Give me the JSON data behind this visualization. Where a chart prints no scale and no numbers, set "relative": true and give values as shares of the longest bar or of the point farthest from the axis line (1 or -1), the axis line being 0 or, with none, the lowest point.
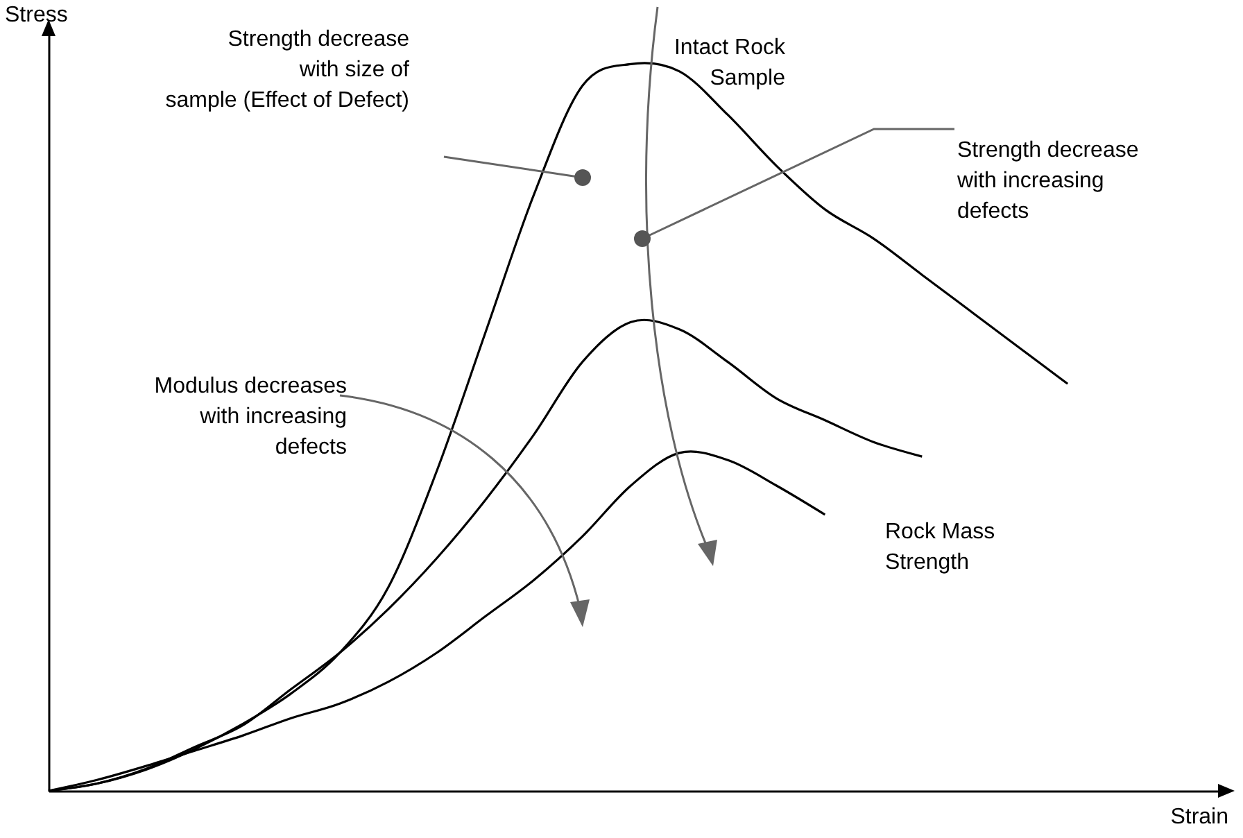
{
  "chart_data": {
    "type": "line",
    "relative": true,
    "xlabel": "Strain",
    "ylabel": "Stress",
    "categories": [
      null,
      null,
      null,
      null,
      null,
      null,
      null,
      null,
      null,
      null,
      null,
      null,
      null,
      null,
      null,
      null,
      null,
      null,
      null,
      null,
      null,
      null
    ],
    "series": [
      {
        "name": "Intact Rock\nSample",
        "color": "#000000",
        "values": [
          0,
          0.01,
          0.029,
          0.057,
          0.092,
          0.134,
          0.19,
          0.28,
          0.44,
          0.63,
          0.82,
          0.97,
          1,
          0.99,
          0.93,
          0.86,
          0.8,
          0.76,
          0.71,
          0.66,
          0.61,
          0.56
        ]
      },
      {
        "color": "#000000",
        "values": [
          0,
          0.01,
          0.03,
          0.06,
          0.09,
          0.14,
          0.19,
          0.25,
          0.32,
          0.4,
          0.49,
          0.59,
          0.645,
          0.635,
          0.59,
          0.54,
          0.51,
          0.48,
          0.46,
          null,
          null,
          null
        ]
      },
      {
        "name": "Rock Mass\nStrength",
        "color": "#000000",
        "values": [
          0,
          0.015,
          0.034,
          0.055,
          0.076,
          0.1,
          0.12,
          0.15,
          0.19,
          0.24,
          0.29,
          0.35,
          0.42,
          0.465,
          0.455,
          0.42,
          0.38,
          null,
          null,
          null,
          null,
          null
        ]
      }
    ],
    "annotations": [
      "Strength decrease\nwith size of\nsample (Effect of Defect)",
      "Strength decrease\nwith increasing\ndefects",
      "Modulus decreases\nwith increasing\ndefects"
    ],
    "grid": false,
    "marker": "none",
    "line_style": "solid"
  }
}
